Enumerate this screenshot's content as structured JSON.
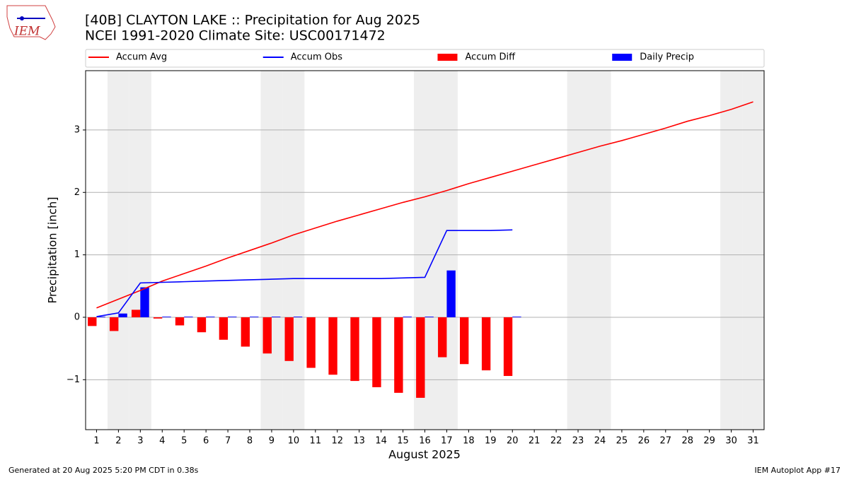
{
  "chart_data": {
    "type": "combo",
    "title": "[40B] CLAYTON LAKE :: Precipitation for Aug 2025",
    "subtitle": "NCEI 1991-2020 Climate Site: USC00171472",
    "logo_text": "IEM",
    "x_label": "August 2025",
    "y_label": "Precipitation [inch]",
    "footer_left": "Generated at 20 Aug 2025 5:20 PM CDT in 0.38s",
    "footer_right": "IEM Autoplot App #17",
    "x": [
      1,
      2,
      3,
      4,
      5,
      6,
      7,
      8,
      9,
      10,
      11,
      12,
      13,
      14,
      15,
      16,
      17,
      18,
      19,
      20,
      21,
      22,
      23,
      24,
      25,
      26,
      27,
      28,
      29,
      30,
      31
    ],
    "xticks": [
      1,
      2,
      3,
      4,
      5,
      6,
      7,
      8,
      9,
      10,
      11,
      12,
      13,
      14,
      15,
      16,
      17,
      18,
      19,
      20,
      21,
      22,
      23,
      24,
      25,
      26,
      27,
      28,
      29,
      30,
      31
    ],
    "xlim": [
      0.5,
      31.5
    ],
    "ylim": [
      -1.8,
      3.95
    ],
    "yticks": [
      {
        "value": -1,
        "label": "−1"
      },
      0,
      1,
      2,
      3
    ],
    "grid": true,
    "shaded_days": [
      2,
      3,
      9,
      10,
      16,
      17,
      23,
      24,
      30,
      31
    ],
    "shade_color": "#eeeeee",
    "series": [
      {
        "name": "Accum Avg",
        "type": "line",
        "color": "#ff0000",
        "values": [
          0.15,
          0.29,
          0.43,
          0.58,
          0.7,
          0.82,
          0.95,
          1.07,
          1.19,
          1.32,
          1.43,
          1.54,
          1.64,
          1.74,
          1.84,
          1.93,
          2.03,
          2.14,
          2.24,
          2.34,
          2.44,
          2.54,
          2.64,
          2.74,
          2.83,
          2.93,
          3.03,
          3.14,
          3.23,
          3.33,
          3.45
        ]
      },
      {
        "name": "Accum Obs",
        "type": "line",
        "color": "#0000ff",
        "values": [
          0.01,
          0.07,
          0.55,
          0.56,
          0.57,
          0.58,
          0.59,
          0.6,
          0.61,
          0.62,
          0.62,
          0.62,
          0.62,
          0.62,
          0.63,
          0.64,
          1.39,
          1.39,
          1.39,
          1.4,
          null,
          null,
          null,
          null,
          null,
          null,
          null,
          null,
          null,
          null,
          null
        ]
      },
      {
        "name": "Accum Diff",
        "type": "bar",
        "color": "#ff0000",
        "values": [
          -0.14,
          -0.22,
          0.12,
          -0.02,
          -0.13,
          -0.24,
          -0.36,
          -0.47,
          -0.58,
          -0.7,
          -0.81,
          -0.92,
          -1.02,
          -1.12,
          -1.21,
          -1.29,
          -0.64,
          -0.75,
          -0.85,
          -0.94,
          null,
          null,
          null,
          null,
          null,
          null,
          null,
          null,
          null,
          null,
          null
        ]
      },
      {
        "name": "Daily Precip",
        "type": "bar",
        "color": "#0000ff",
        "values": [
          0.01,
          0.06,
          0.48,
          0.01,
          0.01,
          0.01,
          0.01,
          0.01,
          0.01,
          0.01,
          0,
          0,
          0,
          0,
          0.01,
          0.01,
          0.75,
          0,
          0,
          0.01,
          null,
          null,
          null,
          null,
          null,
          null,
          null,
          null,
          null,
          null,
          null
        ]
      }
    ]
  }
}
